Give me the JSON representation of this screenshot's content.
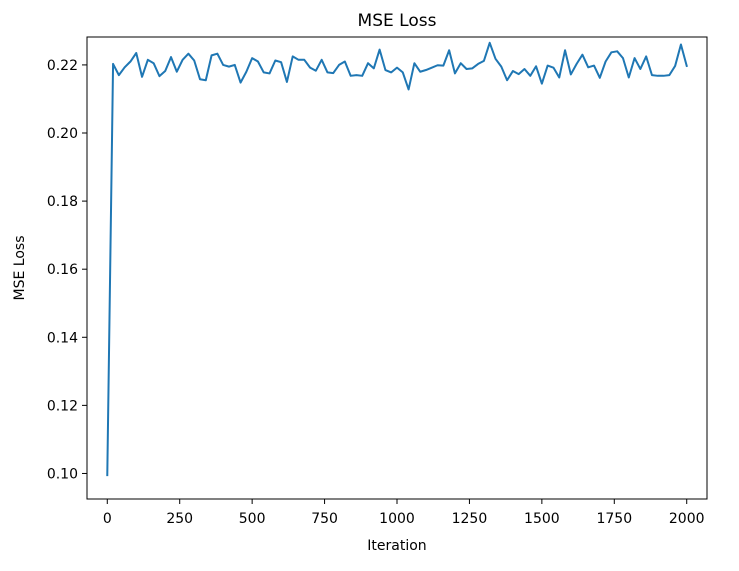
{
  "chart_data": {
    "type": "line",
    "title": "MSE Loss",
    "xlabel": "Iteration",
    "ylabel": "MSE Loss",
    "xlim": [
      -70,
      2070
    ],
    "ylim": [
      0.0925,
      0.2282
    ],
    "xticks": [
      0,
      250,
      500,
      750,
      1000,
      1250,
      1500,
      1750,
      2000
    ],
    "xtick_labels": [
      "0",
      "250",
      "500",
      "750",
      "1000",
      "1250",
      "1500",
      "1750",
      "2000"
    ],
    "yticks": [
      0.1,
      0.12,
      0.14,
      0.16,
      0.18,
      0.2,
      0.22
    ],
    "ytick_labels": [
      "0.10",
      "0.12",
      "0.14",
      "0.16",
      "0.18",
      "0.20",
      "0.22"
    ],
    "grid": false,
    "legend": false,
    "series": [
      {
        "color": "#1f77b4",
        "x": [
          0,
          20,
          40,
          60,
          80,
          100,
          120,
          140,
          160,
          180,
          200,
          220,
          240,
          260,
          280,
          300,
          320,
          340,
          360,
          380,
          400,
          420,
          440,
          460,
          480,
          500,
          520,
          540,
          560,
          580,
          600,
          620,
          640,
          660,
          680,
          700,
          720,
          740,
          760,
          780,
          800,
          820,
          840,
          860,
          880,
          900,
          920,
          940,
          960,
          980,
          1000,
          1020,
          1040,
          1060,
          1080,
          1100,
          1120,
          1140,
          1160,
          1180,
          1200,
          1220,
          1240,
          1260,
          1280,
          1300,
          1320,
          1340,
          1360,
          1380,
          1400,
          1420,
          1440,
          1460,
          1480,
          1500,
          1520,
          1540,
          1560,
          1580,
          1600,
          1620,
          1640,
          1660,
          1680,
          1700,
          1720,
          1740,
          1760,
          1780,
          1800,
          1820,
          1840,
          1860,
          1880,
          1900,
          1920,
          1940,
          1960,
          1980,
          2000
        ],
        "y": [
          0.0995,
          0.2203,
          0.217,
          0.2193,
          0.221,
          0.2235,
          0.2165,
          0.2215,
          0.2205,
          0.2167,
          0.2182,
          0.2223,
          0.218,
          0.2215,
          0.2233,
          0.2213,
          0.2158,
          0.2155,
          0.2228,
          0.2233,
          0.22,
          0.2195,
          0.22,
          0.2148,
          0.218,
          0.222,
          0.221,
          0.2178,
          0.2175,
          0.2213,
          0.2208,
          0.215,
          0.2225,
          0.2215,
          0.2215,
          0.2192,
          0.2183,
          0.2215,
          0.2178,
          0.2176,
          0.22,
          0.221,
          0.2168,
          0.217,
          0.2168,
          0.2205,
          0.219,
          0.2245,
          0.2185,
          0.2178,
          0.2192,
          0.2178,
          0.2128,
          0.2205,
          0.218,
          0.2185,
          0.2192,
          0.2199,
          0.2198,
          0.2243,
          0.2175,
          0.2205,
          0.2188,
          0.219,
          0.2203,
          0.2212,
          0.2265,
          0.2218,
          0.2195,
          0.2155,
          0.2182,
          0.2173,
          0.2188,
          0.2168,
          0.2196,
          0.2145,
          0.2198,
          0.2192,
          0.2163,
          0.2243,
          0.2172,
          0.2203,
          0.223,
          0.2193,
          0.2198,
          0.2162,
          0.221,
          0.2237,
          0.224,
          0.222,
          0.2163,
          0.222,
          0.2188,
          0.2225,
          0.217,
          0.2168,
          0.2168,
          0.217,
          0.2197,
          0.226,
          0.2197
        ]
      }
    ]
  }
}
